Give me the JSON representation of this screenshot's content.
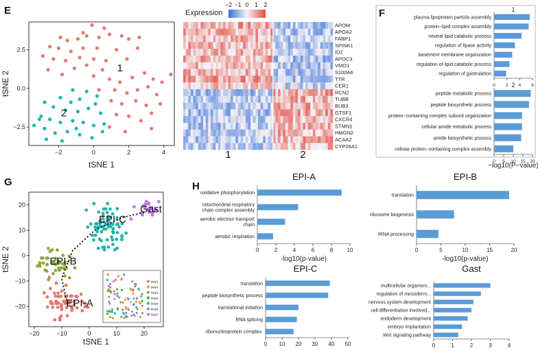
{
  "panels": {
    "E": "E",
    "F": "F",
    "G": "G",
    "H": "H"
  },
  "colors": {
    "cluster1": "#e07a70",
    "cluster2": "#21b6ad",
    "bar": "#5b9bd5",
    "low": "#3b6fd8",
    "high": "#e2483c",
    "epiA": "#e07a70",
    "epiB": "#8ea83a",
    "epiC": "#1fb3b0",
    "gast": "#c07ae0"
  },
  "chart_data": [
    {
      "id": "E-scatter",
      "type": "scatter",
      "xlabel": "tSNE 1",
      "ylabel": "tSNE 2",
      "xticks": [
        "−2",
        "0",
        "2",
        "4"
      ],
      "yticks": [
        "2.5",
        "0.0",
        "−2.5"
      ],
      "xlim": [
        -3.7,
        4.6
      ],
      "ylim": [
        -3.7,
        4.3
      ],
      "cluster_labels": [
        {
          "text": "1",
          "x": 1.5,
          "y": 1.1
        },
        {
          "text": "2",
          "x": -1.7,
          "y": -1.8
        }
      ],
      "series": [
        {
          "points": [
            [
              -0.1,
              4.1
            ],
            [
              -0.6,
              3.6
            ],
            [
              0.6,
              3.9
            ],
            [
              -1.9,
              3.3
            ],
            [
              -1.5,
              3.1
            ],
            [
              -0.9,
              3.2
            ],
            [
              -0.4,
              3.4
            ],
            [
              0.3,
              3.3
            ],
            [
              0.9,
              3.5
            ],
            [
              1.6,
              3.4
            ],
            [
              2.0,
              3.2
            ],
            [
              2.6,
              3.3
            ],
            [
              -2.5,
              2.7
            ],
            [
              -2.0,
              2.6
            ],
            [
              -1.3,
              2.4
            ],
            [
              -0.6,
              2.6
            ],
            [
              0.2,
              2.6
            ],
            [
              1.3,
              2.5
            ],
            [
              2.5,
              2.6
            ],
            [
              -2.9,
              2.1
            ],
            [
              -2.3,
              1.9
            ],
            [
              -1.6,
              1.8
            ],
            [
              -0.8,
              2.0
            ],
            [
              0.0,
              1.9
            ],
            [
              0.7,
              1.8
            ],
            [
              1.9,
              1.9
            ],
            [
              -0.4,
              1.5
            ],
            [
              0.5,
              1.2
            ],
            [
              -1.1,
              1.3
            ],
            [
              -2.6,
              1.2
            ],
            [
              -1.8,
              0.9
            ],
            [
              0.0,
              0.8
            ],
            [
              0.9,
              0.6
            ],
            [
              1.5,
              0.4
            ],
            [
              2.2,
              0.7
            ],
            [
              2.9,
              1.0
            ],
            [
              3.4,
              0.6
            ],
            [
              3.9,
              0.4
            ],
            [
              4.4,
              0.9
            ],
            [
              1.2,
              -0.1
            ],
            [
              1.9,
              -0.3
            ],
            [
              2.5,
              -0.1
            ],
            [
              3.1,
              0.1
            ],
            [
              3.6,
              -0.4
            ],
            [
              1.0,
              -0.8
            ],
            [
              1.6,
              -1.0
            ],
            [
              2.4,
              -0.8
            ],
            [
              3.0,
              -1.1
            ],
            [
              3.8,
              -1.0
            ],
            [
              1.3,
              -1.7
            ],
            [
              2.0,
              -1.8
            ],
            [
              2.7,
              -2.1
            ],
            [
              3.3,
              -1.6
            ],
            [
              0.9,
              -2.5
            ],
            [
              1.8,
              -2.8
            ],
            [
              3.3,
              -2.6
            ],
            [
              0.3,
              -0.1
            ]
          ]
        },
        {
          "points": [
            [
              -1.2,
              -0.1
            ],
            [
              -0.4,
              -0.2
            ],
            [
              0.2,
              -0.5
            ],
            [
              -1.9,
              -0.6
            ],
            [
              -1.3,
              -0.9
            ],
            [
              -0.8,
              -0.7
            ],
            [
              0.1,
              -1.0
            ],
            [
              -2.8,
              -0.9
            ],
            [
              -2.3,
              -1.2
            ],
            [
              -1.6,
              -1.4
            ],
            [
              -0.9,
              -1.5
            ],
            [
              -0.3,
              -1.3
            ],
            [
              0.4,
              -1.6
            ],
            [
              -3.0,
              -1.8
            ],
            [
              -2.5,
              -2.0
            ],
            [
              -1.9,
              -2.2
            ],
            [
              -1.2,
              -2.1
            ],
            [
              -0.6,
              -2.2
            ],
            [
              0.0,
              -2.4
            ],
            [
              0.6,
              -2.3
            ],
            [
              -3.4,
              -2.4
            ],
            [
              -2.8,
              -2.6
            ],
            [
              -2.2,
              -2.9
            ],
            [
              -1.5,
              -2.8
            ],
            [
              -0.8,
              -3.0
            ],
            [
              -0.1,
              -3.2
            ],
            [
              0.5,
              -2.8
            ],
            [
              -2.7,
              -3.3
            ],
            [
              -1.8,
              -3.4
            ],
            [
              -3.1,
              -2.0
            ],
            [
              -1.0,
              -2.6
            ]
          ]
        }
      ]
    },
    {
      "id": "E-heatmap",
      "type": "heatmap",
      "title": "Expression",
      "scale_ticks": [
        "−2",
        "−1",
        "0",
        "1",
        "2"
      ],
      "vmin": -2,
      "vmax": 2,
      "rows": [
        "APOM",
        "APOA2",
        "FABP1",
        "SPINK1",
        "ID2",
        "APOC3",
        "VMO1",
        "S100A6",
        "TTR",
        "CER1",
        "RCN2",
        "TUBB",
        "BUB3",
        "GTSF1",
        "CXCR4",
        "STMN1",
        "HMGN2",
        "ACAA2",
        "CYP26A1"
      ],
      "groups": [
        "1",
        "2"
      ],
      "group_mean": [
        [
          0.8,
          -0.7
        ],
        [
          0.7,
          -0.6
        ],
        [
          0.8,
          -0.7
        ],
        [
          0.7,
          -0.6
        ],
        [
          0.6,
          -0.5
        ],
        [
          0.8,
          -0.7
        ],
        [
          0.6,
          -0.6
        ],
        [
          0.6,
          -0.5
        ],
        [
          0.9,
          -0.7
        ],
        [
          0.5,
          -0.4
        ],
        [
          -0.7,
          0.8
        ],
        [
          -0.6,
          0.7
        ],
        [
          -0.6,
          0.8
        ],
        [
          -0.7,
          0.8
        ],
        [
          -0.5,
          0.6
        ],
        [
          -0.6,
          0.7
        ],
        [
          -0.5,
          0.7
        ],
        [
          -0.6,
          0.8
        ],
        [
          -0.5,
          0.6
        ]
      ]
    },
    {
      "id": "F-1",
      "type": "bar",
      "title": "1",
      "xticks": [
        "0",
        "2",
        "4",
        "6"
      ],
      "xlim": [
        0,
        7
      ],
      "categories": [
        "plasma lipoprotein particle assembly",
        "protein−lipid complex assembly",
        "neutral lipid catabolic process",
        "regulation of lipase activity",
        "basement membrane organization",
        "regulation of lipid catabolic process",
        "regulation of gastrulation"
      ],
      "values": [
        6.5,
        6.3,
        5.0,
        3.8,
        3.3,
        2.8,
        2.2
      ]
    },
    {
      "id": "F-2",
      "type": "bar",
      "title": "2",
      "xlabel": "−log10(P−value)",
      "xticks": [
        "0",
        "5",
        "10",
        "15",
        "20"
      ],
      "xlim": [
        0,
        22
      ],
      "categories": [
        "peptide metabolic process",
        "peptide biosynthetic process",
        "protein−containing complex subunit organization",
        "cellular amide metabolic process",
        "amide biosynthetic process",
        "cellular protein−containing complex assembly"
      ],
      "values": [
        21,
        20,
        16,
        16,
        15.5,
        11
      ]
    },
    {
      "id": "G-scatter",
      "type": "scatter",
      "xlabel": "tSNE 1",
      "ylabel": "tSNE 2",
      "xticks": [
        "−20",
        "−10",
        "0",
        "10",
        "20"
      ],
      "yticks": [
        "20",
        "10",
        "0",
        "−10",
        "−20"
      ],
      "xlim": [
        -22,
        27
      ],
      "ylim": [
        -28,
        25
      ],
      "cluster_labels": [
        {
          "text": "EPI-A",
          "x": -3.5,
          "y": -20
        },
        {
          "text": "EPI-B",
          "x": -9.5,
          "y": -3.5
        },
        {
          "text": "EPI-C",
          "x": 8.5,
          "y": 13
        },
        {
          "text": "Gast",
          "x": 22.5,
          "y": 17
        }
      ],
      "legend_items": [
        "Day1",
        "Day2",
        "Day3",
        "Day4",
        "Day5",
        "Day6",
        "Day7"
      ]
    },
    {
      "id": "H-EPI-A",
      "type": "bar",
      "title": "EPI-A",
      "xlabel": "-log10(p-value)",
      "xticks": [
        "0",
        "2",
        "4",
        "6",
        "8",
        "10"
      ],
      "xlim": [
        0,
        10
      ],
      "categories": [
        "oxidative phosphorylation",
        "mitochondrial respiratory chain complex assembly",
        "aerobic electron transport chain",
        "aerobic respiration"
      ],
      "values": [
        9.1,
        4.4,
        3.0,
        1.7
      ]
    },
    {
      "id": "H-EPI-B",
      "type": "bar",
      "title": "EPI-B",
      "xlabel": "-log10(p-value)",
      "xticks": [
        "0",
        "5",
        "10",
        "15",
        "20"
      ],
      "xlim": [
        0,
        20
      ],
      "categories": [
        "translation",
        "ribosome biogenesis",
        "rRNA processing"
      ],
      "values": [
        19,
        7.7,
        4.5
      ]
    },
    {
      "id": "H-EPI-C",
      "type": "bar",
      "title": "EPI-C",
      "xticks": [
        "0",
        "10",
        "20",
        "30",
        "40",
        "50"
      ],
      "xlim": [
        0,
        50
      ],
      "categories": [
        "translation",
        "peptide biosynthetic process",
        "translational initiation",
        "RNA splicing",
        "ribonucleoprotein complex."
      ],
      "values": [
        39,
        38,
        20,
        19,
        17
      ]
    },
    {
      "id": "H-Gast",
      "type": "bar",
      "title": "Gast",
      "xticks": [
        "0",
        "1",
        "2",
        "3",
        "4"
      ],
      "xlim": [
        0,
        4
      ],
      "categories": [
        "multicellular organism...",
        "regulation of mesoderm...",
        "nervous system development",
        "cell differentiation involved...",
        "endoderm development",
        "embryo implantation",
        "Wnt signaling pathway"
      ],
      "values": [
        3.0,
        2.5,
        2.1,
        2.0,
        1.8,
        1.5,
        1.3
      ]
    }
  ]
}
